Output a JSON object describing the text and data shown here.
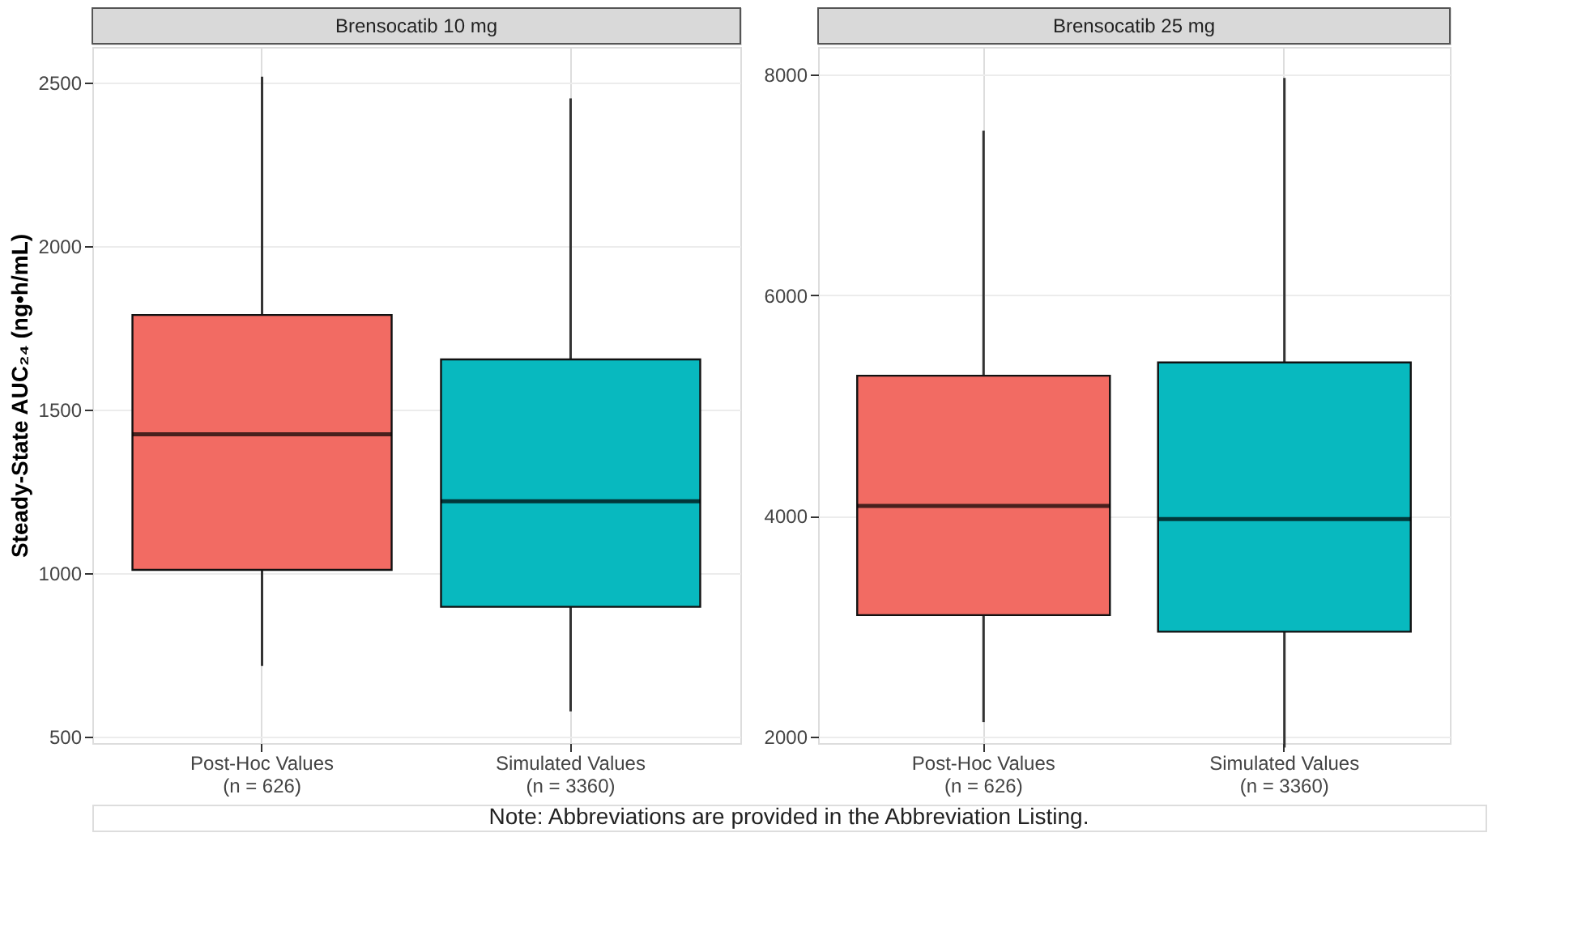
{
  "chart_data": [
    {
      "type": "box",
      "title": "Brensocatib 10 mg",
      "ylabel": "Steady-State AUC₂₄ (ng•h/mL)",
      "categories": [
        "Post-Hoc Values\n(n = 626)",
        "Simulated Values\n(n = 3360)"
      ],
      "colors": [
        "#f26b63",
        "#08b9bf"
      ],
      "boxes": [
        {
          "low": 716,
          "q1": 1010,
          "median": 1425,
          "q3": 1790,
          "high": 2519
        },
        {
          "low": 577,
          "q1": 897,
          "median": 1220,
          "q3": 1654,
          "high": 2453
        }
      ],
      "ylim": [
        480,
        2610
      ],
      "yticks": [
        500,
        1000,
        1500,
        2000,
        2500
      ],
      "grid": true,
      "annotations": [
        "Note: Abbreviations are provided in the Abbreviation Listing."
      ]
    },
    {
      "type": "box",
      "title": "Brensocatib 25 mg",
      "categories": [
        "Post-Hoc Values\n(n = 626)",
        "Simulated Values\n(n = 3360)"
      ],
      "colors": [
        "#f26b63",
        "#08b9bf"
      ],
      "boxes": [
        {
          "low": 2130,
          "q1": 3100,
          "median": 4090,
          "q3": 5270,
          "high": 7490
        },
        {
          "low": 1900,
          "q1": 2950,
          "median": 3970,
          "q3": 5390,
          "high": 7970
        }
      ],
      "ylim": [
        1940,
        8250
      ],
      "yticks": [
        2000,
        4000,
        6000,
        8000
      ],
      "grid": true
    }
  ]
}
